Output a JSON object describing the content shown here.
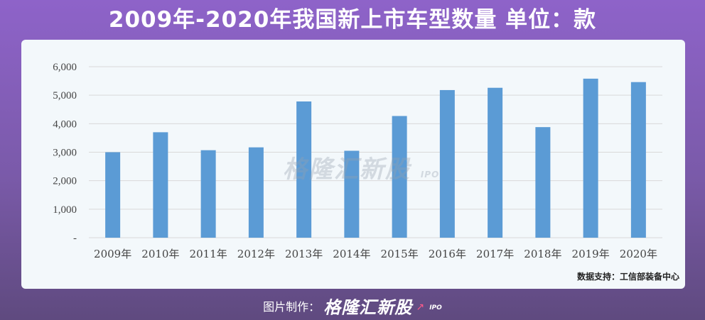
{
  "header": {
    "title": "2009年-2020年我国新上市车型数量  单位：款"
  },
  "source": "数据支持：工信部装备中心",
  "watermark": {
    "brand": "格隆汇新股",
    "suffix": "IPO"
  },
  "footer": {
    "prefix": "图片制作：",
    "brand": "格隆汇新股",
    "suffix": "IPO"
  },
  "colors": {
    "bar": "#5b9bd5",
    "grid": "#d9d9d9",
    "axis_text": "#444444"
  },
  "chart_data": {
    "type": "bar",
    "title": "2009年-2020年我国新上市车型数量  单位：款",
    "xlabel": "",
    "ylabel": "",
    "categories": [
      "2009年",
      "2010年",
      "2011年",
      "2012年",
      "2013年",
      "2014年",
      "2015年",
      "2016年",
      "2017年",
      "2018年",
      "2019年",
      "2020年"
    ],
    "values": [
      3000,
      3700,
      3070,
      3170,
      4780,
      3050,
      4270,
      5180,
      5260,
      3880,
      5580,
      5460
    ],
    "ylim": [
      0,
      6000
    ],
    "yticks": [
      0,
      1000,
      2000,
      3000,
      4000,
      5000,
      6000
    ],
    "ytick_labels": [
      "-",
      "1,000",
      "2,000",
      "3,000",
      "4,000",
      "5,000",
      "6,000"
    ],
    "grid": true,
    "legend": "none"
  }
}
